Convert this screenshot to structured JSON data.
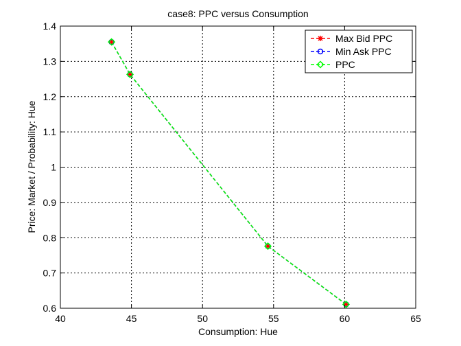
{
  "chart_data": {
    "type": "line",
    "title": "case8: PPC versus Consumption",
    "xlabel": "Consumption: Hue",
    "ylabel": "Price: Market / Probability: Hue",
    "xlim": [
      40,
      65
    ],
    "ylim": [
      0.6,
      1.4
    ],
    "xticks": [
      40,
      45,
      50,
      55,
      60,
      65
    ],
    "yticks": [
      0.6,
      0.7,
      0.8,
      0.9,
      1.0,
      1.1,
      1.2,
      1.3,
      1.4
    ],
    "xtick_labels": [
      "40",
      "45",
      "50",
      "55",
      "60",
      "65"
    ],
    "ytick_labels": [
      "0.6",
      "0.7",
      "0.8",
      "0.9",
      "1",
      "1.1",
      "1.2",
      "1.3",
      "1.4"
    ],
    "grid": true,
    "legend_position": "top-right",
    "series": [
      {
        "name": "Max Bid PPC",
        "color": "#ff0000",
        "marker": "asterisk",
        "x": [
          43.6,
          44.9,
          54.6,
          60.1
        ],
        "y": [
          1.355,
          1.263,
          0.776,
          0.611
        ]
      },
      {
        "name": "Min Ask PPC",
        "color": "#0000ff",
        "marker": "circle",
        "x": [
          43.6,
          44.9,
          54.6,
          60.1
        ],
        "y": [
          1.355,
          1.263,
          0.776,
          0.611
        ]
      },
      {
        "name": "PPC",
        "color": "#00ff00",
        "marker": "diamond",
        "x": [
          43.6,
          44.9,
          54.6,
          60.1
        ],
        "y": [
          1.355,
          1.263,
          0.776,
          0.611
        ]
      }
    ]
  }
}
